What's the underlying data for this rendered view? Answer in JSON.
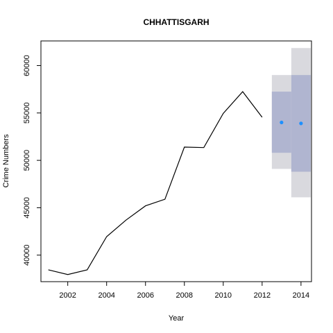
{
  "chart_data": {
    "type": "line",
    "title": "CHHATTISGARH",
    "xlabel": "Year",
    "ylabel": "Crime Numbers",
    "xlim": [
      2000.62,
      2014.54
    ],
    "ylim": [
      37200,
      62600
    ],
    "x_ticks": [
      2002,
      2004,
      2006,
      2008,
      2010,
      2012,
      2014
    ],
    "y_ticks": [
      40000,
      45000,
      50000,
      55000,
      60000
    ],
    "grid": false,
    "legend": "none",
    "series": [
      {
        "x": [
          2001,
          2002,
          2003,
          2004,
          2005,
          2006,
          2007,
          2008,
          2009,
          2010,
          2011,
          2012
        ],
        "y": [
          38450,
          37950,
          38450,
          41950,
          43700,
          45200,
          45900,
          51400,
          51350,
          54950,
          57250,
          54550
        ]
      }
    ],
    "forecast": {
      "x": [
        2013,
        2014
      ],
      "point": [
        54000,
        53900
      ],
      "lo80": [
        50800,
        48800
      ],
      "hi80": [
        57250,
        59000
      ],
      "lo95": [
        49100,
        46100
      ],
      "hi95": [
        59000,
        61850
      ]
    },
    "colors": {
      "line": "#000000",
      "point": "#1E90FF",
      "band80": "#B0B5D0",
      "band95": "#D9D9DE"
    }
  }
}
